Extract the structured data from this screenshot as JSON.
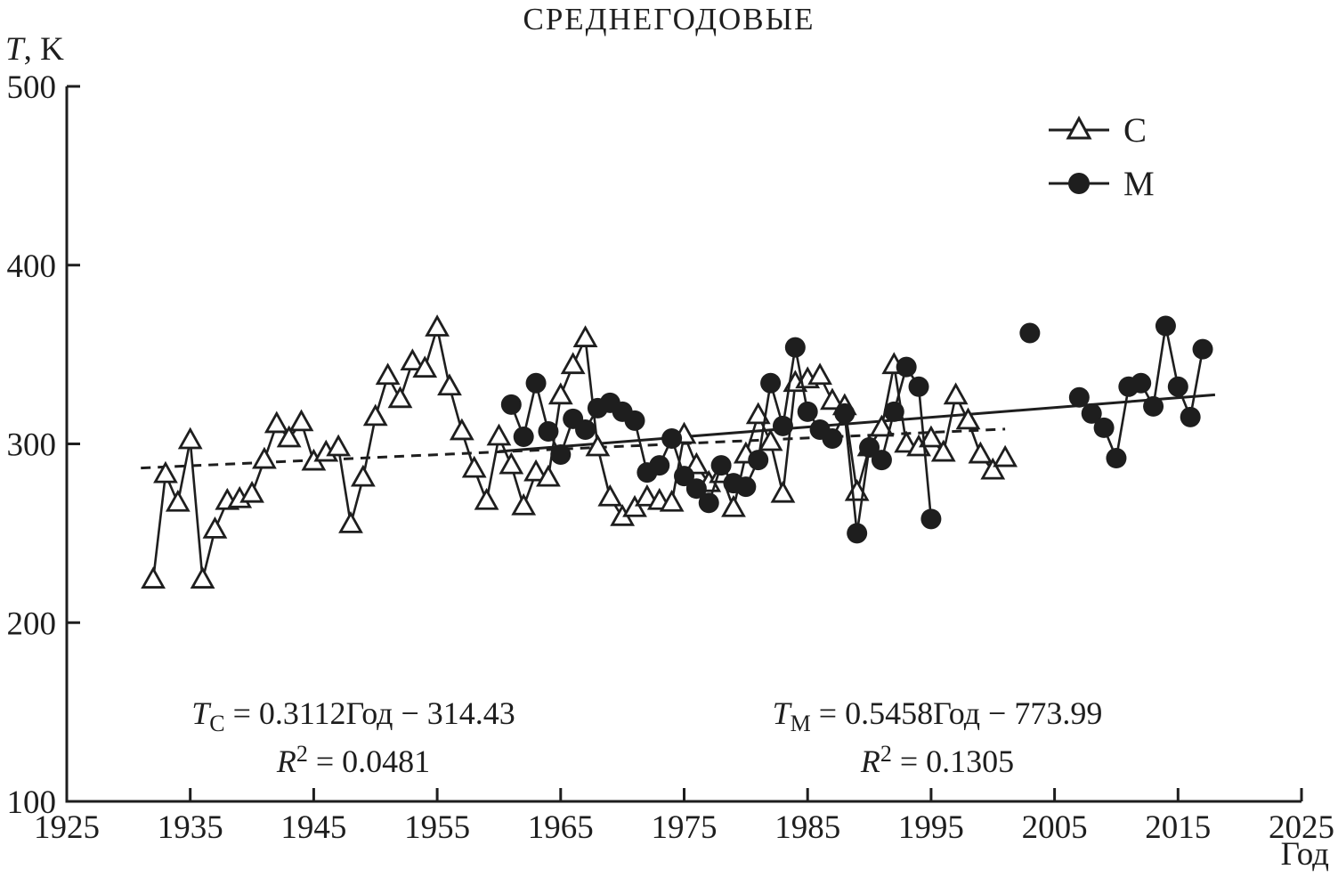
{
  "title": "СРЕДНЕГОДОВЫЕ",
  "y_axis": {
    "var": "T",
    "rest": ", K"
  },
  "x_axis_label": "Год",
  "legend": [
    {
      "label": "С",
      "marker": "open-triangle"
    },
    {
      "label": "М",
      "marker": "filled-circle"
    }
  ],
  "equations": {
    "c": {
      "var": "T",
      "sub": "С",
      "expr": " = 0.3112Год − 314.43",
      "r_var": "R",
      "r_sup": "2",
      "r_expr": " = 0.0481"
    },
    "m": {
      "var": "T",
      "sub": "М",
      "expr": " = 0.5458Год − 773.99",
      "r_var": "R",
      "r_sup": "2",
      "r_expr": " = 0.1305"
    }
  },
  "colors": {
    "ink": "#1e1e1e",
    "marker_fill": "#ffffff"
  },
  "chart_data": {
    "type": "line",
    "title": "СРЕДНЕГОДОВЫЕ",
    "xlabel": "Год",
    "ylabel": "T, K",
    "xlim": [
      1925,
      2025
    ],
    "ylim": [
      100,
      500
    ],
    "x_ticks": [
      1925,
      1935,
      1945,
      1955,
      1965,
      1975,
      1985,
      1995,
      2005,
      2015,
      2025
    ],
    "y_ticks": [
      100,
      200,
      300,
      400,
      500
    ],
    "grid": false,
    "legend_position": "top-right",
    "series": [
      {
        "name": "С",
        "marker": "open-triangle",
        "points": [
          [
            1932,
            224
          ],
          [
            1933,
            283
          ],
          [
            1934,
            267
          ],
          [
            1935,
            302
          ],
          [
            1936,
            224
          ],
          [
            1937,
            252
          ],
          [
            1938,
            268
          ],
          [
            1939,
            269
          ],
          [
            1940,
            272
          ],
          [
            1941,
            291
          ],
          [
            1942,
            311
          ],
          [
            1943,
            303
          ],
          [
            1944,
            312
          ],
          [
            1945,
            290
          ],
          [
            1946,
            295
          ],
          [
            1947,
            298
          ],
          [
            1948,
            255
          ],
          [
            1949,
            281
          ],
          [
            1950,
            315
          ],
          [
            1951,
            338
          ],
          [
            1952,
            325
          ],
          [
            1953,
            346
          ],
          [
            1954,
            342
          ],
          [
            1955,
            365
          ],
          [
            1956,
            332
          ],
          [
            1957,
            307
          ],
          [
            1958,
            286
          ],
          [
            1959,
            268
          ],
          [
            1960,
            304
          ],
          [
            1961,
            288
          ],
          [
            1962,
            265
          ],
          [
            1963,
            284
          ],
          [
            1964,
            281
          ],
          [
            1965,
            327
          ],
          [
            1966,
            344
          ],
          [
            1967,
            359
          ],
          [
            1968,
            298
          ],
          [
            1969,
            270
          ],
          [
            1970,
            259
          ],
          [
            1971,
            264
          ],
          [
            1972,
            270
          ],
          [
            1973,
            268
          ],
          [
            1974,
            267
          ],
          [
            1975,
            305
          ],
          [
            1976,
            288
          ],
          [
            1977,
            278
          ],
          [
            1978,
            283
          ],
          [
            1979,
            264
          ],
          [
            1980,
            294
          ],
          [
            1981,
            316
          ],
          [
            1982,
            301
          ],
          [
            1983,
            272
          ],
          [
            1984,
            334
          ],
          [
            1985,
            336
          ],
          [
            1986,
            338
          ],
          [
            1987,
            324
          ],
          [
            1988,
            321
          ],
          [
            1989,
            273
          ],
          [
            1990,
            298
          ],
          [
            1991,
            309
          ],
          [
            1992,
            344
          ],
          [
            1993,
            300
          ],
          [
            1994,
            298
          ],
          [
            1995,
            303
          ],
          [
            1996,
            295
          ],
          [
            1997,
            327
          ],
          [
            1998,
            313
          ],
          [
            1999,
            294
          ],
          [
            2000,
            285
          ],
          [
            2001,
            292
          ]
        ],
        "trend": {
          "label": "TС",
          "slope": 0.3112,
          "intercept": -314.43,
          "r2": 0.0481,
          "style": "dashed",
          "x_start": 1931,
          "x_end": 2001
        }
      },
      {
        "name": "М",
        "marker": "filled-circle",
        "segments": [
          [
            [
              1961,
              322
            ],
            [
              1962,
              304
            ],
            [
              1963,
              334
            ],
            [
              1964,
              307
            ],
            [
              1965,
              294
            ],
            [
              1966,
              314
            ],
            [
              1967,
              308
            ],
            [
              1968,
              320
            ],
            [
              1969,
              323
            ],
            [
              1970,
              318
            ],
            [
              1971,
              313
            ],
            [
              1972,
              284
            ],
            [
              1973,
              288
            ],
            [
              1974,
              303
            ],
            [
              1975,
              282
            ],
            [
              1976,
              275
            ],
            [
              1977,
              267
            ],
            [
              1978,
              288
            ],
            [
              1979,
              278
            ],
            [
              1980,
              276
            ],
            [
              1981,
              291
            ],
            [
              1982,
              334
            ],
            [
              1983,
              310
            ],
            [
              1984,
              354
            ],
            [
              1985,
              318
            ],
            [
              1986,
              308
            ],
            [
              1987,
              303
            ],
            [
              1988,
              317
            ],
            [
              1989,
              250
            ],
            [
              1990,
              298
            ],
            [
              1991,
              291
            ],
            [
              1992,
              318
            ],
            [
              1993,
              343
            ],
            [
              1994,
              332
            ],
            [
              1995,
              258
            ]
          ],
          [
            [
              2003,
              362
            ]
          ],
          [
            [
              2007,
              326
            ],
            [
              2008,
              317
            ],
            [
              2009,
              309
            ],
            [
              2010,
              292
            ],
            [
              2011,
              332
            ],
            [
              2012,
              334
            ],
            [
              2013,
              321
            ],
            [
              2014,
              366
            ],
            [
              2015,
              332
            ],
            [
              2016,
              315
            ],
            [
              2017,
              353
            ]
          ]
        ],
        "trend": {
          "label": "TМ",
          "slope": 0.5458,
          "intercept": -773.99,
          "r2": 0.1305,
          "style": "solid",
          "x_start": 1960,
          "x_end": 2018
        }
      }
    ]
  }
}
